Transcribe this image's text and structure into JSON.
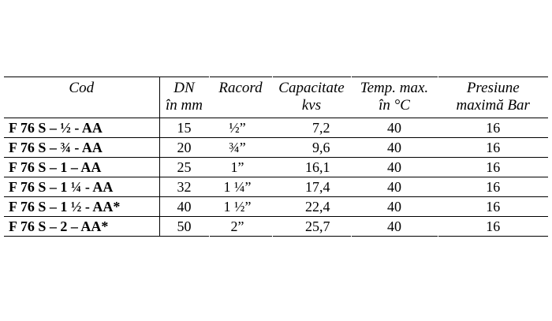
{
  "headers": {
    "cod": "Cod",
    "dn_1": "DN",
    "dn_2": "în mm",
    "racord": "Racord",
    "cap_1": "Capacitate",
    "cap_2": "kvs",
    "temp_1": "Temp. max.",
    "temp_2": "în °C",
    "pres_1": "Presiune",
    "pres_2": "maximă Bar"
  },
  "rows": [
    {
      "cod": "F 76 S – ½  - AA",
      "dn": "15",
      "racord": "½”",
      "capacitate": "7,2",
      "temp": "40",
      "presiune": "16"
    },
    {
      "cod": "F 76 S – ¾ - AA",
      "dn": "20",
      "racord": "¾”",
      "capacitate": "9,6",
      "temp": "40",
      "presiune": "16"
    },
    {
      "cod": "F 76 S – 1 – AA",
      "dn": "25",
      "racord": "1”",
      "capacitate": "16,1",
      "temp": "40",
      "presiune": "16"
    },
    {
      "cod": "F 76 S – 1 ¼ - AA",
      "dn": "32",
      "racord": "1 ¼”",
      "capacitate": "17,4",
      "temp": "40",
      "presiune": "16"
    },
    {
      "cod": "F 76 S – 1 ½ - AA*",
      "dn": "40",
      "racord": "1 ½”",
      "capacitate": "22,4",
      "temp": "40",
      "presiune": "16"
    },
    {
      "cod": "F 76 S – 2 – AA*",
      "dn": "50",
      "racord": "2”",
      "capacitate": "25,7",
      "temp": "40",
      "presiune": "16"
    }
  ]
}
